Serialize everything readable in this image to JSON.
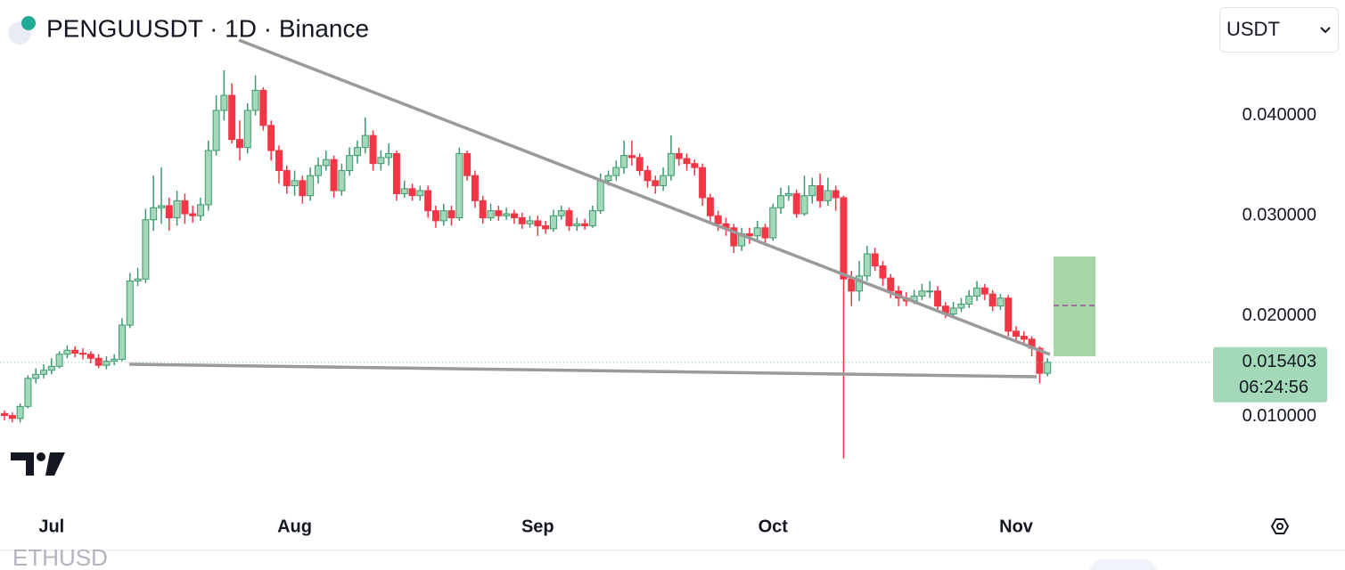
{
  "header": {
    "symbol_line": "PENGUUSDT · 1D · Binance"
  },
  "toolbar": {
    "currency": "USDT"
  },
  "lower_pane": {
    "symbol": "ETHUSD"
  },
  "chart_data": {
    "type": "candlestick",
    "up_color": "#a3d9b8",
    "up_border": "#3a9a6e",
    "down_color": "#f23645",
    "countdown": "06:24:56",
    "xlim": [
      -0.57,
      154
    ],
    "xticks": [
      {
        "value": 6,
        "label": "Jul"
      },
      {
        "value": 37,
        "label": "Aug"
      },
      {
        "value": 68,
        "label": "Sep"
      },
      {
        "value": 98,
        "label": "Oct"
      },
      {
        "value": 129,
        "label": "Nov"
      }
    ],
    "ylim": [
      0.0018,
      0.0515
    ],
    "yticks": [
      {
        "value": 0.04,
        "label": "0.040000"
      },
      {
        "value": 0.03,
        "label": "0.030000"
      },
      {
        "value": 0.02,
        "label": "0.020000"
      },
      {
        "value": 0.01,
        "label": "0.010000"
      }
    ],
    "open": [
      0.0103,
      0.0101,
      0.0098,
      0.011,
      0.0138,
      0.0142,
      0.0146,
      0.015,
      0.0162,
      0.0166,
      0.0163,
      0.0162,
      0.0158,
      0.0151,
      0.0155,
      0.0157,
      0.0191,
      0.0235,
      0.0237,
      0.0296,
      0.0308,
      0.031,
      0.0298,
      0.0315,
      0.0302,
      0.03,
      0.0311,
      0.0365,
      0.0405,
      0.042,
      0.0376,
      0.0368,
      0.0405,
      0.0425,
      0.039,
      0.0365,
      0.0345,
      0.033,
      0.0335,
      0.032,
      0.034,
      0.035,
      0.0356,
      0.0325,
      0.0345,
      0.036,
      0.0368,
      0.038,
      0.0352,
      0.0358,
      0.0362,
      0.0322,
      0.0327,
      0.032,
      0.0325,
      0.0305,
      0.0295,
      0.0305,
      0.0298,
      0.0362,
      0.034,
      0.0315,
      0.0298,
      0.0305,
      0.03,
      0.0302,
      0.0298,
      0.0292,
      0.0295,
      0.029,
      0.0287,
      0.03,
      0.0305,
      0.029,
      0.0292,
      0.029,
      0.0305,
      0.0335,
      0.034,
      0.0348,
      0.036,
      0.0358,
      0.0345,
      0.0335,
      0.033,
      0.034,
      0.0362,
      0.0357,
      0.0352,
      0.0348,
      0.0318,
      0.03,
      0.0292,
      0.0288,
      0.027,
      0.0282,
      0.028,
      0.0288,
      0.0278,
      0.0308,
      0.032,
      0.0322,
      0.0302,
      0.032,
      0.033,
      0.0315,
      0.0325,
      0.0318,
      0.0237,
      0.0225,
      0.024,
      0.0262,
      0.025,
      0.0238,
      0.0225,
      0.0218,
      0.0215,
      0.022,
      0.0225,
      0.0225,
      0.021,
      0.0202,
      0.0208,
      0.0212,
      0.022,
      0.0228,
      0.0222,
      0.021,
      0.0218,
      0.0185,
      0.018,
      0.0177,
      0.0168,
      0.0143
    ],
    "high": [
      0.0106,
      0.0104,
      0.0113,
      0.0141,
      0.0148,
      0.0152,
      0.0158,
      0.0165,
      0.0171,
      0.017,
      0.0168,
      0.0165,
      0.0162,
      0.016,
      0.0162,
      0.0198,
      0.0243,
      0.0248,
      0.0307,
      0.034,
      0.0348,
      0.0318,
      0.0325,
      0.0322,
      0.031,
      0.0318,
      0.0375,
      0.042,
      0.0445,
      0.0432,
      0.0395,
      0.0412,
      0.044,
      0.0428,
      0.0395,
      0.037,
      0.035,
      0.0345,
      0.034,
      0.0348,
      0.0358,
      0.0365,
      0.036,
      0.0352,
      0.0368,
      0.0375,
      0.0398,
      0.0385,
      0.0365,
      0.0372,
      0.0365,
      0.0335,
      0.0332,
      0.033,
      0.033,
      0.031,
      0.0312,
      0.031,
      0.0368,
      0.0365,
      0.0345,
      0.032,
      0.0312,
      0.031,
      0.0308,
      0.0306,
      0.0303,
      0.03,
      0.03,
      0.0295,
      0.0306,
      0.031,
      0.0308,
      0.0298,
      0.0297,
      0.031,
      0.0342,
      0.0345,
      0.0355,
      0.0375,
      0.0375,
      0.0362,
      0.035,
      0.034,
      0.0348,
      0.038,
      0.0368,
      0.0362,
      0.0356,
      0.0352,
      0.0322,
      0.0305,
      0.0298,
      0.0292,
      0.0288,
      0.0288,
      0.0295,
      0.0292,
      0.0312,
      0.0328,
      0.033,
      0.0326,
      0.034,
      0.0338,
      0.0342,
      0.0338,
      0.033,
      0.032,
      0.0245,
      0.0255,
      0.027,
      0.0268,
      0.0255,
      0.0242,
      0.023,
      0.0224,
      0.0226,
      0.0232,
      0.0235,
      0.023,
      0.0214,
      0.0214,
      0.0218,
      0.0226,
      0.0235,
      0.0232,
      0.0226,
      0.0222,
      0.0221,
      0.019,
      0.0185,
      0.018,
      0.017,
      0.0158
    ],
    "low": [
      0.0096,
      0.0094,
      0.0094,
      0.0108,
      0.0133,
      0.0138,
      0.0142,
      0.0148,
      0.0158,
      0.0159,
      0.0157,
      0.0153,
      0.0148,
      0.0147,
      0.0151,
      0.0155,
      0.0188,
      0.023,
      0.0233,
      0.0285,
      0.0292,
      0.0285,
      0.029,
      0.0292,
      0.0293,
      0.0295,
      0.0305,
      0.036,
      0.0395,
      0.0372,
      0.0355,
      0.0362,
      0.04,
      0.0385,
      0.0355,
      0.0332,
      0.0322,
      0.032,
      0.0312,
      0.0315,
      0.0332,
      0.0345,
      0.0318,
      0.032,
      0.034,
      0.0352,
      0.0362,
      0.0345,
      0.0345,
      0.035,
      0.0315,
      0.0318,
      0.0315,
      0.0315,
      0.0298,
      0.0288,
      0.029,
      0.029,
      0.0295,
      0.0335,
      0.0308,
      0.0292,
      0.0295,
      0.0295,
      0.0296,
      0.0292,
      0.0287,
      0.0288,
      0.028,
      0.0282,
      0.0284,
      0.0296,
      0.0285,
      0.0285,
      0.0286,
      0.0288,
      0.0302,
      0.033,
      0.0335,
      0.0342,
      0.035,
      0.034,
      0.0328,
      0.0322,
      0.0325,
      0.0335,
      0.035,
      0.0345,
      0.034,
      0.031,
      0.0292,
      0.0285,
      0.028,
      0.0263,
      0.0265,
      0.0272,
      0.0275,
      0.027,
      0.0275,
      0.0302,
      0.0315,
      0.0298,
      0.03,
      0.0312,
      0.0308,
      0.031,
      0.0305,
      0.0058,
      0.021,
      0.0215,
      0.0235,
      0.0245,
      0.023,
      0.0218,
      0.021,
      0.021,
      0.0212,
      0.0216,
      0.0218,
      0.0205,
      0.0198,
      0.0199,
      0.0204,
      0.0208,
      0.0215,
      0.0216,
      0.0205,
      0.0206,
      0.018,
      0.0175,
      0.0172,
      0.016,
      0.0133,
      0.014
    ],
    "close": [
      0.0101,
      0.0098,
      0.011,
      0.0138,
      0.0142,
      0.0146,
      0.015,
      0.0162,
      0.0166,
      0.0163,
      0.0162,
      0.0158,
      0.0151,
      0.0155,
      0.0157,
      0.0191,
      0.0235,
      0.0237,
      0.0296,
      0.0308,
      0.031,
      0.0298,
      0.0315,
      0.0302,
      0.03,
      0.0311,
      0.0365,
      0.0405,
      0.042,
      0.0376,
      0.0368,
      0.0405,
      0.0425,
      0.039,
      0.0365,
      0.0345,
      0.033,
      0.0335,
      0.032,
      0.034,
      0.035,
      0.0356,
      0.0325,
      0.0345,
      0.036,
      0.0368,
      0.038,
      0.0352,
      0.0358,
      0.0362,
      0.0322,
      0.0327,
      0.032,
      0.0325,
      0.0305,
      0.0295,
      0.0305,
      0.0298,
      0.0362,
      0.034,
      0.0315,
      0.0298,
      0.0305,
      0.03,
      0.0302,
      0.0298,
      0.0292,
      0.0295,
      0.029,
      0.0287,
      0.03,
      0.0305,
      0.029,
      0.0292,
      0.029,
      0.0305,
      0.0335,
      0.034,
      0.0348,
      0.036,
      0.0358,
      0.0345,
      0.0335,
      0.033,
      0.034,
      0.0362,
      0.0357,
      0.0352,
      0.0348,
      0.0318,
      0.03,
      0.0292,
      0.0288,
      0.027,
      0.0282,
      0.028,
      0.0288,
      0.0278,
      0.0308,
      0.032,
      0.0322,
      0.0302,
      0.032,
      0.033,
      0.0315,
      0.0325,
      0.0318,
      0.0237,
      0.0225,
      0.024,
      0.0262,
      0.025,
      0.0238,
      0.0225,
      0.0218,
      0.0215,
      0.022,
      0.0225,
      0.0225,
      0.021,
      0.0202,
      0.0208,
      0.0212,
      0.022,
      0.0228,
      0.0222,
      0.021,
      0.0218,
      0.0185,
      0.018,
      0.0177,
      0.0168,
      0.0143,
      0.015403
    ]
  }
}
